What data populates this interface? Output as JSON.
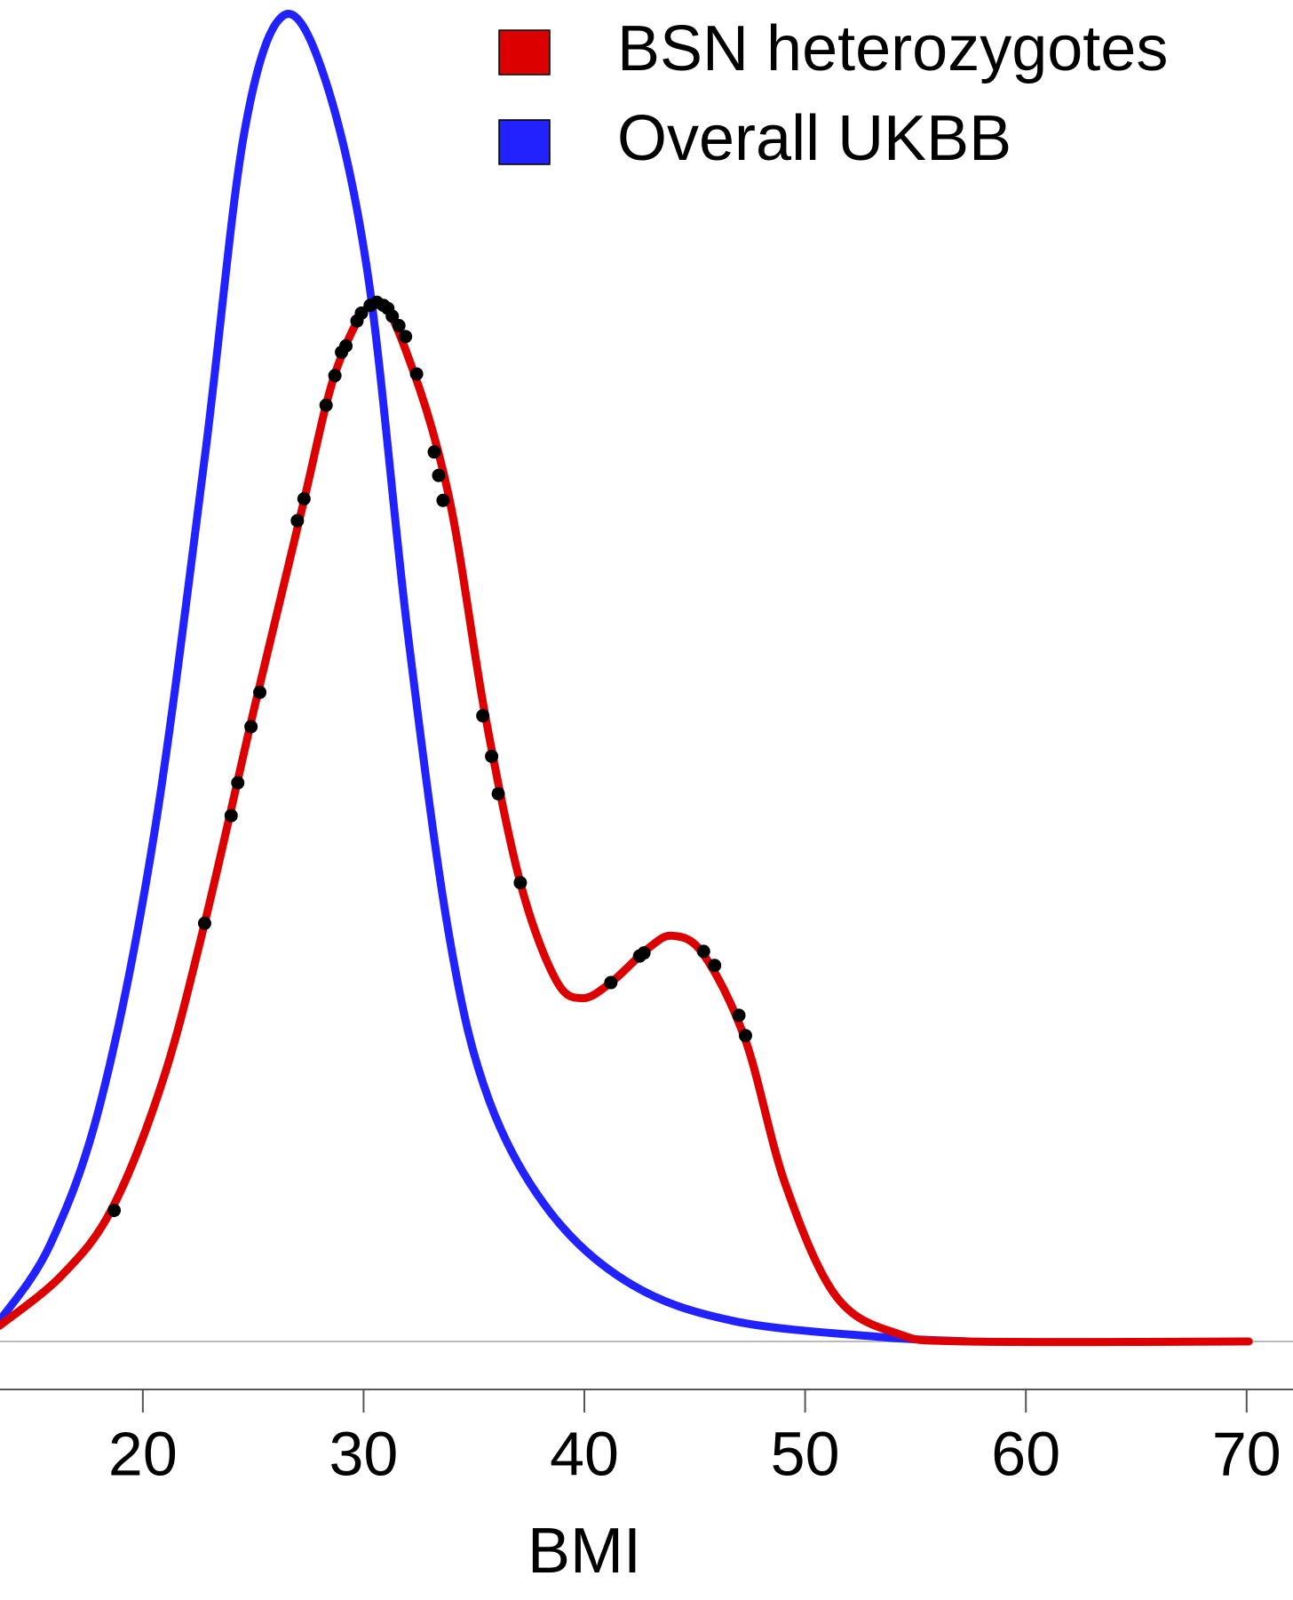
{
  "chart_data": {
    "type": "line",
    "xlabel": "BMI",
    "xlim": [
      13.53,
      72.1
    ],
    "xticks": [
      20,
      30,
      40,
      50,
      60,
      70
    ],
    "ylim": [
      0,
      0.085
    ],
    "legend": "top-right",
    "series": [
      {
        "name": "BSN heterozygotes",
        "color": "#dd0000",
        "x": [
          13.5,
          16.3,
          18.6,
          20.9,
          22.8,
          25.1,
          27.2,
          28.8,
          30.6,
          32.2,
          33.9,
          35.5,
          37.1,
          38.7,
          39.9,
          41.2,
          42.9,
          44.0,
          45.4,
          47.3,
          49.1,
          51.4,
          54.2,
          57.4,
          70.1
        ],
        "values": [
          0.001,
          0.0042,
          0.0085,
          0.0167,
          0.0268,
          0.0409,
          0.0533,
          0.0624,
          0.0666,
          0.0624,
          0.0539,
          0.0402,
          0.0294,
          0.0232,
          0.022,
          0.023,
          0.0252,
          0.026,
          0.0248,
          0.0193,
          0.0101,
          0.0029,
          0.0005,
          0,
          0
        ]
      },
      {
        "name": "Overall UKBB",
        "color": "#2222ff",
        "x": [
          13.5,
          15.8,
          18.1,
          20.5,
          22.8,
          24.6,
          26.4,
          28.3,
          30.2,
          32.0,
          33.9,
          35.7,
          38.5,
          42.2,
          46.8,
          53.3,
          57.4
        ],
        "values": [
          0.0013,
          0.0062,
          0.0154,
          0.0324,
          0.0566,
          0.0775,
          0.085,
          0.0807,
          0.0683,
          0.0454,
          0.0258,
          0.0154,
          0.0082,
          0.0036,
          0.0013,
          0.0003,
          0
        ]
      }
    ],
    "points": {
      "color": "#000000",
      "x": [
        18.7,
        22.8,
        24.0,
        24.3,
        24.9,
        25.3,
        27.0,
        27.3,
        28.3,
        28.7,
        29.0,
        29.2,
        29.7,
        29.9,
        30.3,
        30.6,
        30.9,
        31.1,
        31.3,
        31.6,
        31.9,
        32.4,
        33.2,
        33.4,
        33.6,
        35.4,
        35.8,
        36.1,
        37.1,
        41.2,
        42.5,
        42.7,
        45.4,
        45.9,
        47.0,
        47.3
      ],
      "values": [
        0.0084,
        0.0268,
        0.0337,
        0.0358,
        0.0394,
        0.0416,
        0.0526,
        0.054,
        0.06,
        0.0619,
        0.0634,
        0.0638,
        0.0654,
        0.0659,
        0.0664,
        0.0666,
        0.0664,
        0.0662,
        0.0657,
        0.0651,
        0.0644,
        0.062,
        0.057,
        0.0555,
        0.0539,
        0.0401,
        0.0375,
        0.0351,
        0.0294,
        0.023,
        0.0247,
        0.0249,
        0.025,
        0.0241,
        0.0209,
        0.0196
      ]
    }
  }
}
